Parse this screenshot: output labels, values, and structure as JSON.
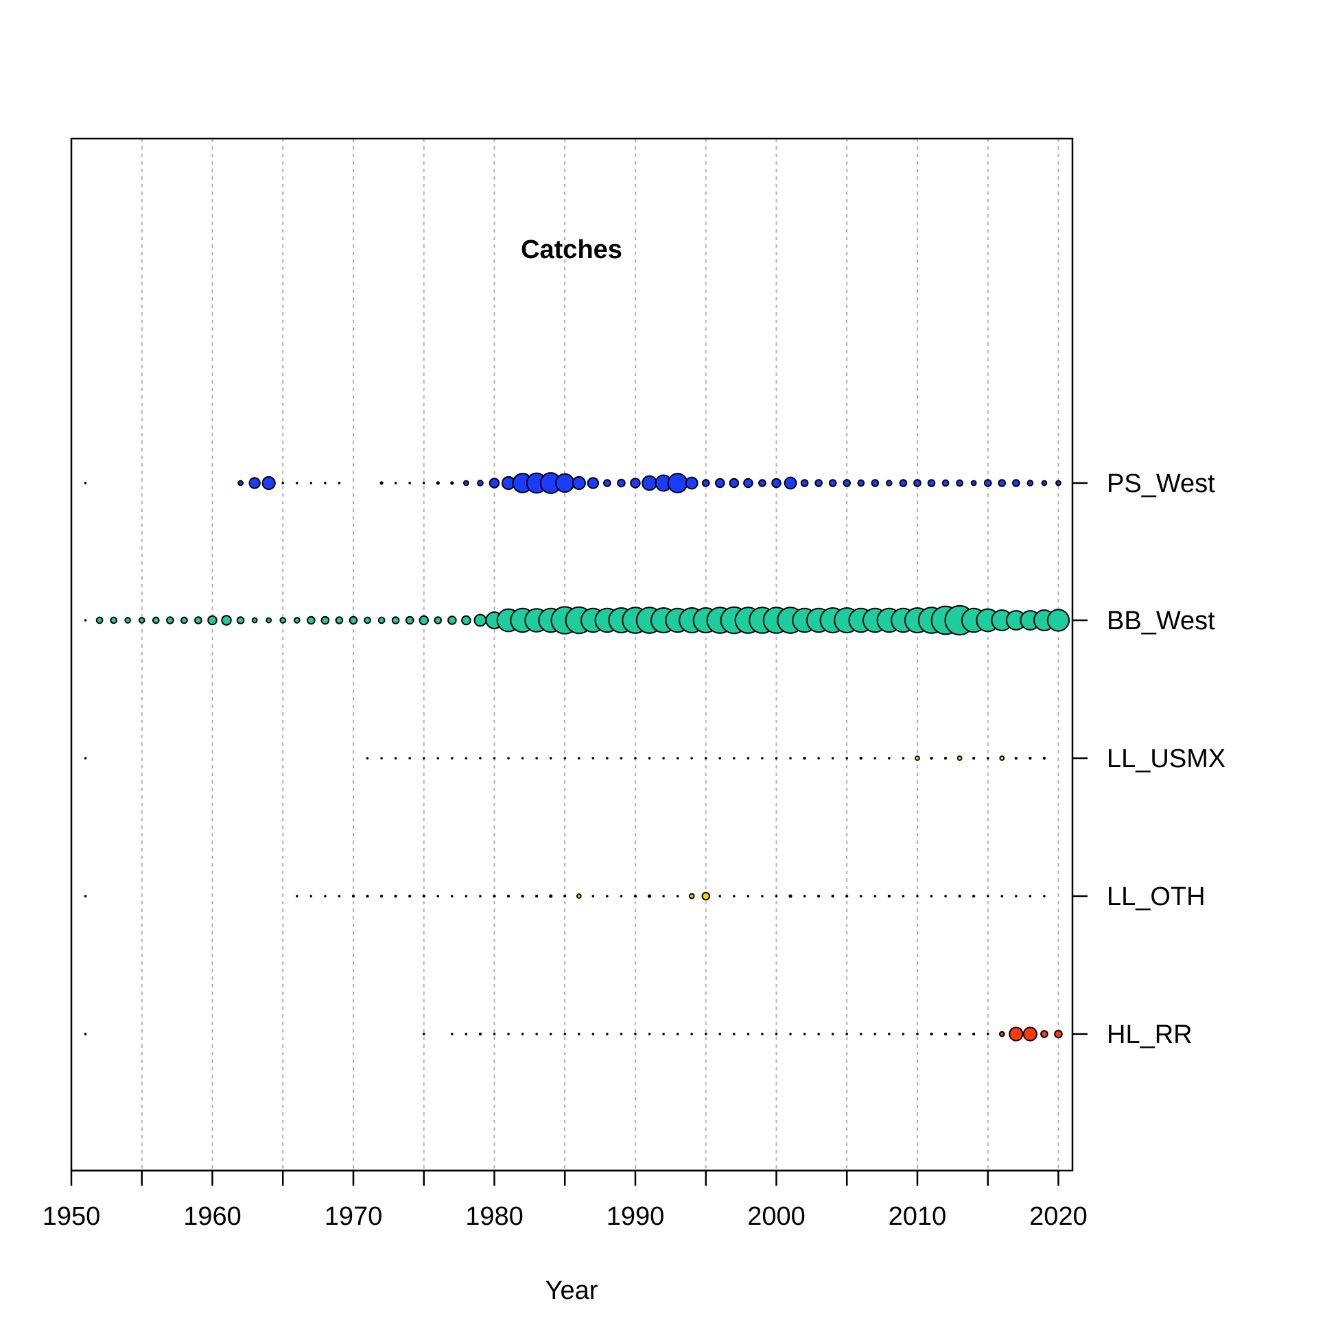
{
  "chart_data": {
    "type": "scatter",
    "subtype": "bubble",
    "title": "Catches",
    "xlabel": "Year",
    "ylabel": "",
    "xlim": [
      1950,
      2021
    ],
    "xticks": [
      1950,
      1960,
      1970,
      1980,
      1990,
      2000,
      2010,
      2020
    ],
    "grid": "vertical dashed, every 5 years",
    "legend": "none",
    "size_scale_max": 1.0,
    "series": [
      {
        "name": "PS_West",
        "color": "#1a3cff",
        "points": [
          [
            1951,
            0.05
          ],
          [
            1962,
            0.14
          ],
          [
            1963,
            0.32
          ],
          [
            1964,
            0.38
          ],
          [
            1965,
            0.05
          ],
          [
            1966,
            0.05
          ],
          [
            1967,
            0.05
          ],
          [
            1968,
            0.05
          ],
          [
            1969,
            0.05
          ],
          [
            1972,
            0.1
          ],
          [
            1973,
            0.05
          ],
          [
            1974,
            0.05
          ],
          [
            1975,
            0.05
          ],
          [
            1976,
            0.1
          ],
          [
            1977,
            0.1
          ],
          [
            1978,
            0.14
          ],
          [
            1979,
            0.16
          ],
          [
            1980,
            0.28
          ],
          [
            1981,
            0.38
          ],
          [
            1982,
            0.58
          ],
          [
            1983,
            0.6
          ],
          [
            1984,
            0.62
          ],
          [
            1985,
            0.55
          ],
          [
            1986,
            0.38
          ],
          [
            1987,
            0.32
          ],
          [
            1988,
            0.2
          ],
          [
            1989,
            0.22
          ],
          [
            1990,
            0.28
          ],
          [
            1991,
            0.43
          ],
          [
            1992,
            0.48
          ],
          [
            1993,
            0.58
          ],
          [
            1994,
            0.35
          ],
          [
            1995,
            0.2
          ],
          [
            1996,
            0.26
          ],
          [
            1997,
            0.26
          ],
          [
            1998,
            0.26
          ],
          [
            1999,
            0.2
          ],
          [
            2000,
            0.26
          ],
          [
            2001,
            0.35
          ],
          [
            2002,
            0.2
          ],
          [
            2003,
            0.2
          ],
          [
            2004,
            0.2
          ],
          [
            2005,
            0.2
          ],
          [
            2006,
            0.18
          ],
          [
            2007,
            0.2
          ],
          [
            2008,
            0.16
          ],
          [
            2009,
            0.2
          ],
          [
            2010,
            0.2
          ],
          [
            2011,
            0.2
          ],
          [
            2012,
            0.18
          ],
          [
            2013,
            0.18
          ],
          [
            2014,
            0.14
          ],
          [
            2015,
            0.2
          ],
          [
            2016,
            0.2
          ],
          [
            2017,
            0.2
          ],
          [
            2018,
            0.16
          ],
          [
            2019,
            0.14
          ],
          [
            2020,
            0.14
          ]
        ]
      },
      {
        "name": "BB_West",
        "color": "#1ecc9e",
        "points": [
          [
            1951,
            0.05
          ],
          [
            1952,
            0.18
          ],
          [
            1953,
            0.18
          ],
          [
            1954,
            0.16
          ],
          [
            1955,
            0.16
          ],
          [
            1956,
            0.18
          ],
          [
            1957,
            0.2
          ],
          [
            1958,
            0.18
          ],
          [
            1959,
            0.2
          ],
          [
            1960,
            0.26
          ],
          [
            1961,
            0.28
          ],
          [
            1962,
            0.2
          ],
          [
            1963,
            0.14
          ],
          [
            1964,
            0.14
          ],
          [
            1965,
            0.16
          ],
          [
            1966,
            0.16
          ],
          [
            1967,
            0.22
          ],
          [
            1968,
            0.22
          ],
          [
            1969,
            0.2
          ],
          [
            1970,
            0.22
          ],
          [
            1971,
            0.18
          ],
          [
            1972,
            0.18
          ],
          [
            1973,
            0.2
          ],
          [
            1974,
            0.22
          ],
          [
            1975,
            0.26
          ],
          [
            1976,
            0.2
          ],
          [
            1977,
            0.24
          ],
          [
            1978,
            0.26
          ],
          [
            1979,
            0.35
          ],
          [
            1980,
            0.5
          ],
          [
            1981,
            0.68
          ],
          [
            1982,
            0.72
          ],
          [
            1983,
            0.7
          ],
          [
            1984,
            0.72
          ],
          [
            1985,
            0.82
          ],
          [
            1986,
            0.8
          ],
          [
            1987,
            0.72
          ],
          [
            1988,
            0.72
          ],
          [
            1989,
            0.75
          ],
          [
            1990,
            0.78
          ],
          [
            1991,
            0.78
          ],
          [
            1992,
            0.75
          ],
          [
            1993,
            0.72
          ],
          [
            1994,
            0.75
          ],
          [
            1995,
            0.75
          ],
          [
            1996,
            0.78
          ],
          [
            1997,
            0.8
          ],
          [
            1998,
            0.78
          ],
          [
            1999,
            0.78
          ],
          [
            2000,
            0.78
          ],
          [
            2001,
            0.78
          ],
          [
            2002,
            0.72
          ],
          [
            2003,
            0.72
          ],
          [
            2004,
            0.75
          ],
          [
            2005,
            0.75
          ],
          [
            2006,
            0.72
          ],
          [
            2007,
            0.72
          ],
          [
            2008,
            0.72
          ],
          [
            2009,
            0.72
          ],
          [
            2010,
            0.75
          ],
          [
            2011,
            0.78
          ],
          [
            2012,
            0.85
          ],
          [
            2013,
            0.88
          ],
          [
            2014,
            0.72
          ],
          [
            2015,
            0.68
          ],
          [
            2016,
            0.62
          ],
          [
            2017,
            0.58
          ],
          [
            2018,
            0.58
          ],
          [
            2019,
            0.62
          ],
          [
            2020,
            0.65
          ]
        ]
      },
      {
        "name": "LL_USMX",
        "color": "#ffe619",
        "points": [
          [
            1951,
            0.05
          ],
          [
            1971,
            0.05
          ],
          [
            1972,
            0.05
          ],
          [
            1973,
            0.05
          ],
          [
            1974,
            0.05
          ],
          [
            1975,
            0.05
          ],
          [
            1976,
            0.05
          ],
          [
            1977,
            0.05
          ],
          [
            1978,
            0.05
          ],
          [
            1979,
            0.05
          ],
          [
            1980,
            0.05
          ],
          [
            1981,
            0.05
          ],
          [
            1982,
            0.05
          ],
          [
            1983,
            0.05
          ],
          [
            1984,
            0.05
          ],
          [
            1985,
            0.05
          ],
          [
            1986,
            0.05
          ],
          [
            1987,
            0.05
          ],
          [
            1988,
            0.05
          ],
          [
            1989,
            0.05
          ],
          [
            1990,
            0.05
          ],
          [
            1991,
            0.05
          ],
          [
            1992,
            0.05
          ],
          [
            1993,
            0.05
          ],
          [
            1994,
            0.05
          ],
          [
            1995,
            0.05
          ],
          [
            1996,
            0.05
          ],
          [
            1997,
            0.05
          ],
          [
            1998,
            0.05
          ],
          [
            1999,
            0.05
          ],
          [
            2000,
            0.05
          ],
          [
            2001,
            0.05
          ],
          [
            2002,
            0.08
          ],
          [
            2003,
            0.05
          ],
          [
            2004,
            0.05
          ],
          [
            2005,
            0.05
          ],
          [
            2006,
            0.08
          ],
          [
            2007,
            0.05
          ],
          [
            2008,
            0.05
          ],
          [
            2009,
            0.05
          ],
          [
            2010,
            0.12
          ],
          [
            2011,
            0.08
          ],
          [
            2012,
            0.08
          ],
          [
            2013,
            0.12
          ],
          [
            2014,
            0.08
          ],
          [
            2015,
            0.05
          ],
          [
            2016,
            0.12
          ],
          [
            2017,
            0.08
          ],
          [
            2018,
            0.08
          ],
          [
            2019,
            0.08
          ]
        ]
      },
      {
        "name": "LL_OTH",
        "color": "#ffd000",
        "points": [
          [
            1951,
            0.05
          ],
          [
            1966,
            0.05
          ],
          [
            1967,
            0.05
          ],
          [
            1968,
            0.05
          ],
          [
            1969,
            0.05
          ],
          [
            1970,
            0.08
          ],
          [
            1971,
            0.08
          ],
          [
            1972,
            0.08
          ],
          [
            1973,
            0.08
          ],
          [
            1974,
            0.08
          ],
          [
            1975,
            0.08
          ],
          [
            1976,
            0.05
          ],
          [
            1977,
            0.05
          ],
          [
            1978,
            0.05
          ],
          [
            1979,
            0.05
          ],
          [
            1980,
            0.08
          ],
          [
            1981,
            0.08
          ],
          [
            1982,
            0.08
          ],
          [
            1983,
            0.08
          ],
          [
            1984,
            0.1
          ],
          [
            1985,
            0.08
          ],
          [
            1986,
            0.12
          ],
          [
            1987,
            0.05
          ],
          [
            1988,
            0.05
          ],
          [
            1989,
            0.05
          ],
          [
            1990,
            0.08
          ],
          [
            1991,
            0.1
          ],
          [
            1992,
            0.05
          ],
          [
            1993,
            0.05
          ],
          [
            1994,
            0.14
          ],
          [
            1995,
            0.22
          ],
          [
            1996,
            0.05
          ],
          [
            1997,
            0.05
          ],
          [
            1998,
            0.05
          ],
          [
            1999,
            0.05
          ],
          [
            2000,
            0.05
          ],
          [
            2001,
            0.1
          ],
          [
            2002,
            0.05
          ],
          [
            2003,
            0.08
          ],
          [
            2004,
            0.08
          ],
          [
            2005,
            0.08
          ],
          [
            2006,
            0.05
          ],
          [
            2007,
            0.05
          ],
          [
            2008,
            0.08
          ],
          [
            2009,
            0.05
          ],
          [
            2010,
            0.05
          ],
          [
            2011,
            0.05
          ],
          [
            2012,
            0.05
          ],
          [
            2013,
            0.08
          ],
          [
            2014,
            0.08
          ],
          [
            2015,
            0.05
          ],
          [
            2016,
            0.05
          ],
          [
            2017,
            0.05
          ],
          [
            2018,
            0.05
          ],
          [
            2019,
            0.05
          ]
        ]
      },
      {
        "name": "HL_RR",
        "color": "#ff3a0a",
        "points": [
          [
            1951,
            0.05
          ],
          [
            1975,
            0.05
          ],
          [
            1977,
            0.05
          ],
          [
            1978,
            0.05
          ],
          [
            1979,
            0.08
          ],
          [
            1980,
            0.05
          ],
          [
            1981,
            0.05
          ],
          [
            1982,
            0.05
          ],
          [
            1983,
            0.05
          ],
          [
            1984,
            0.05
          ],
          [
            1985,
            0.05
          ],
          [
            1986,
            0.05
          ],
          [
            1987,
            0.05
          ],
          [
            1988,
            0.05
          ],
          [
            1989,
            0.05
          ],
          [
            1990,
            0.05
          ],
          [
            1991,
            0.05
          ],
          [
            1992,
            0.05
          ],
          [
            1993,
            0.05
          ],
          [
            1994,
            0.05
          ],
          [
            1995,
            0.05
          ],
          [
            1996,
            0.05
          ],
          [
            1997,
            0.05
          ],
          [
            1998,
            0.05
          ],
          [
            1999,
            0.05
          ],
          [
            2000,
            0.05
          ],
          [
            2001,
            0.05
          ],
          [
            2002,
            0.05
          ],
          [
            2003,
            0.05
          ],
          [
            2004,
            0.05
          ],
          [
            2005,
            0.05
          ],
          [
            2006,
            0.05
          ],
          [
            2007,
            0.05
          ],
          [
            2008,
            0.05
          ],
          [
            2009,
            0.05
          ],
          [
            2010,
            0.05
          ],
          [
            2011,
            0.08
          ],
          [
            2012,
            0.08
          ],
          [
            2013,
            0.08
          ],
          [
            2014,
            0.08
          ],
          [
            2015,
            0.05
          ],
          [
            2016,
            0.14
          ],
          [
            2017,
            0.4
          ],
          [
            2018,
            0.4
          ],
          [
            2019,
            0.2
          ],
          [
            2020,
            0.22
          ]
        ]
      }
    ]
  }
}
